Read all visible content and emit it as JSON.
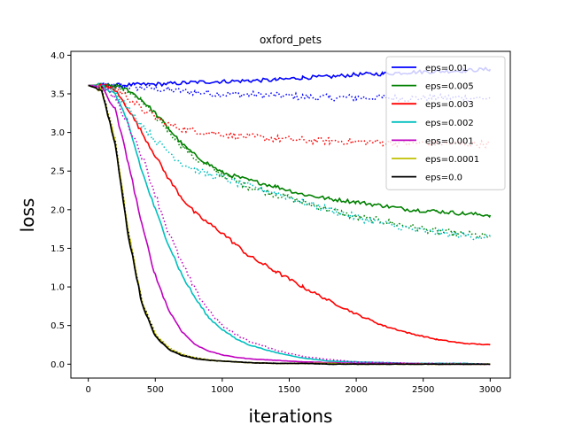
{
  "chart_data": {
    "type": "line",
    "title": "oxford_pets",
    "xlabel": "iterations",
    "ylabel": "loss",
    "xlim": [
      -130,
      3150
    ],
    "ylim": [
      -0.18,
      4.05
    ],
    "xticks": [
      0,
      500,
      1000,
      1500,
      2000,
      2500,
      3000
    ],
    "yticks": [
      0.0,
      0.5,
      1.0,
      1.5,
      2.0,
      2.5,
      3.0,
      3.5,
      4.0
    ],
    "grid": false,
    "legend_position": "top-right",
    "series": [
      {
        "name": "eps=0.01",
        "color": "#0000ff",
        "x": [
          0,
          200,
          400,
          600,
          800,
          1000,
          1200,
          1400,
          1600,
          1800,
          2000,
          2200,
          2400,
          2600,
          2800,
          3000
        ],
        "solid": [
          3.61,
          3.61,
          3.62,
          3.63,
          3.65,
          3.66,
          3.67,
          3.68,
          3.71,
          3.72,
          3.75,
          3.76,
          3.78,
          3.79,
          3.8,
          3.82
        ],
        "dotted": [
          3.61,
          3.6,
          3.58,
          3.55,
          3.52,
          3.5,
          3.49,
          3.48,
          3.46,
          3.45,
          3.45,
          3.45,
          3.44,
          3.45,
          3.45,
          3.44
        ]
      },
      {
        "name": "eps=0.005",
        "color": "#008000",
        "x": [
          0,
          100,
          200,
          300,
          400,
          500,
          600,
          700,
          800,
          1000,
          1200,
          1400,
          1600,
          1800,
          2000,
          2200,
          2400,
          2600,
          2800,
          3000
        ],
        "solid": [
          3.61,
          3.61,
          3.6,
          3.55,
          3.42,
          3.25,
          3.05,
          2.85,
          2.7,
          2.48,
          2.38,
          2.3,
          2.2,
          2.14,
          2.1,
          2.05,
          2.0,
          1.98,
          1.95,
          1.93
        ],
        "dotted": [
          3.61,
          3.61,
          3.6,
          3.52,
          3.4,
          3.22,
          3.03,
          2.83,
          2.66,
          2.45,
          2.3,
          2.2,
          2.1,
          2.0,
          1.9,
          1.85,
          1.78,
          1.72,
          1.68,
          1.65
        ]
      },
      {
        "name": "eps=0.003",
        "color": "#ff0000",
        "x": [
          0,
          100,
          200,
          300,
          400,
          500,
          600,
          700,
          800,
          900,
          1000,
          1100,
          1200,
          1400,
          1600,
          1800,
          2000,
          2200,
          2400,
          2600,
          2800,
          3000
        ],
        "solid": [
          3.61,
          3.6,
          3.55,
          3.3,
          3.0,
          2.7,
          2.4,
          2.15,
          1.95,
          1.82,
          1.7,
          1.55,
          1.4,
          1.2,
          1.0,
          0.82,
          0.65,
          0.5,
          0.4,
          0.32,
          0.27,
          0.25
        ],
        "dotted": [
          3.61,
          3.6,
          3.58,
          3.45,
          3.3,
          3.2,
          3.1,
          3.05,
          3.02,
          3.0,
          2.98,
          2.96,
          2.94,
          2.92,
          2.9,
          2.89,
          2.88,
          2.87,
          2.86,
          2.86,
          2.85,
          2.85
        ]
      },
      {
        "name": "eps=0.002",
        "color": "#00bfbf",
        "x": [
          0,
          100,
          200,
          300,
          400,
          500,
          600,
          700,
          800,
          900,
          1000,
          1100,
          1200,
          1400,
          1600,
          1800,
          2000,
          2200,
          2400,
          2600,
          2800,
          3000
        ],
        "solid": [
          3.61,
          3.6,
          3.5,
          3.1,
          2.5,
          2.0,
          1.55,
          1.15,
          0.85,
          0.6,
          0.45,
          0.33,
          0.25,
          0.15,
          0.08,
          0.04,
          0.03,
          0.02,
          0.01,
          0.01,
          0.01,
          0.0
        ],
        "dotted": [
          3.61,
          3.6,
          3.55,
          3.3,
          3.1,
          2.9,
          2.75,
          2.6,
          2.52,
          2.45,
          2.42,
          2.35,
          2.3,
          2.22,
          2.1,
          2.0,
          1.9,
          1.82,
          1.75,
          1.7,
          1.67,
          1.64
        ]
      },
      {
        "name": "eps=0.001",
        "color": "#bf00bf",
        "x": [
          0,
          100,
          200,
          300,
          400,
          500,
          600,
          700,
          800,
          900,
          1000,
          1100,
          1200,
          1400,
          1600,
          1800,
          2000,
          2200,
          2400,
          2600,
          2800,
          3000
        ],
        "solid": [
          3.61,
          3.58,
          3.3,
          2.6,
          1.8,
          1.15,
          0.7,
          0.42,
          0.25,
          0.17,
          0.12,
          0.09,
          0.07,
          0.05,
          0.03,
          0.02,
          0.01,
          0.01,
          0.01,
          0.0,
          0.0,
          0.0
        ],
        "dotted": [
          3.61,
          3.6,
          3.45,
          3.1,
          2.7,
          2.2,
          1.7,
          1.3,
          0.95,
          0.7,
          0.5,
          0.38,
          0.3,
          0.18,
          0.1,
          0.06,
          0.03,
          0.02,
          0.01,
          0.01,
          0.01,
          0.0
        ]
      },
      {
        "name": "eps=0.0001",
        "color": "#bfbf00",
        "x": [
          0,
          100,
          200,
          300,
          400,
          500,
          600,
          700,
          800,
          900,
          1000,
          1100,
          1200,
          1400,
          1600,
          1800,
          2000,
          2200,
          2400,
          2600,
          2800,
          3000
        ],
        "solid": [
          3.61,
          3.55,
          2.9,
          1.7,
          0.8,
          0.38,
          0.2,
          0.12,
          0.08,
          0.05,
          0.04,
          0.03,
          0.02,
          0.01,
          0.01,
          0.01,
          0.0,
          0.0,
          0.0,
          0.0,
          0.0,
          0.0
        ],
        "dotted": [
          3.61,
          3.55,
          2.9,
          1.72,
          0.82,
          0.4,
          0.22,
          0.13,
          0.08,
          0.06,
          0.04,
          0.03,
          0.02,
          0.01,
          0.01,
          0.01,
          0.0,
          0.0,
          0.0,
          0.0,
          0.0,
          0.0
        ]
      },
      {
        "name": "eps=0.0",
        "color": "#000000",
        "x": [
          0,
          100,
          200,
          300,
          400,
          500,
          600,
          700,
          800,
          900,
          1000,
          1100,
          1200,
          1400,
          1600,
          1800,
          2000,
          2200,
          2400,
          2600,
          2800,
          3000
        ],
        "solid": [
          3.61,
          3.55,
          2.85,
          1.65,
          0.78,
          0.36,
          0.19,
          0.11,
          0.07,
          0.05,
          0.04,
          0.03,
          0.02,
          0.01,
          0.01,
          0.0,
          0.0,
          0.0,
          0.0,
          0.0,
          0.0,
          0.0
        ],
        "dotted": [
          3.61,
          3.55,
          2.88,
          1.68,
          0.8,
          0.38,
          0.2,
          0.12,
          0.08,
          0.05,
          0.04,
          0.03,
          0.02,
          0.01,
          0.01,
          0.0,
          0.0,
          0.0,
          0.0,
          0.0,
          0.0,
          0.0
        ]
      }
    ]
  }
}
